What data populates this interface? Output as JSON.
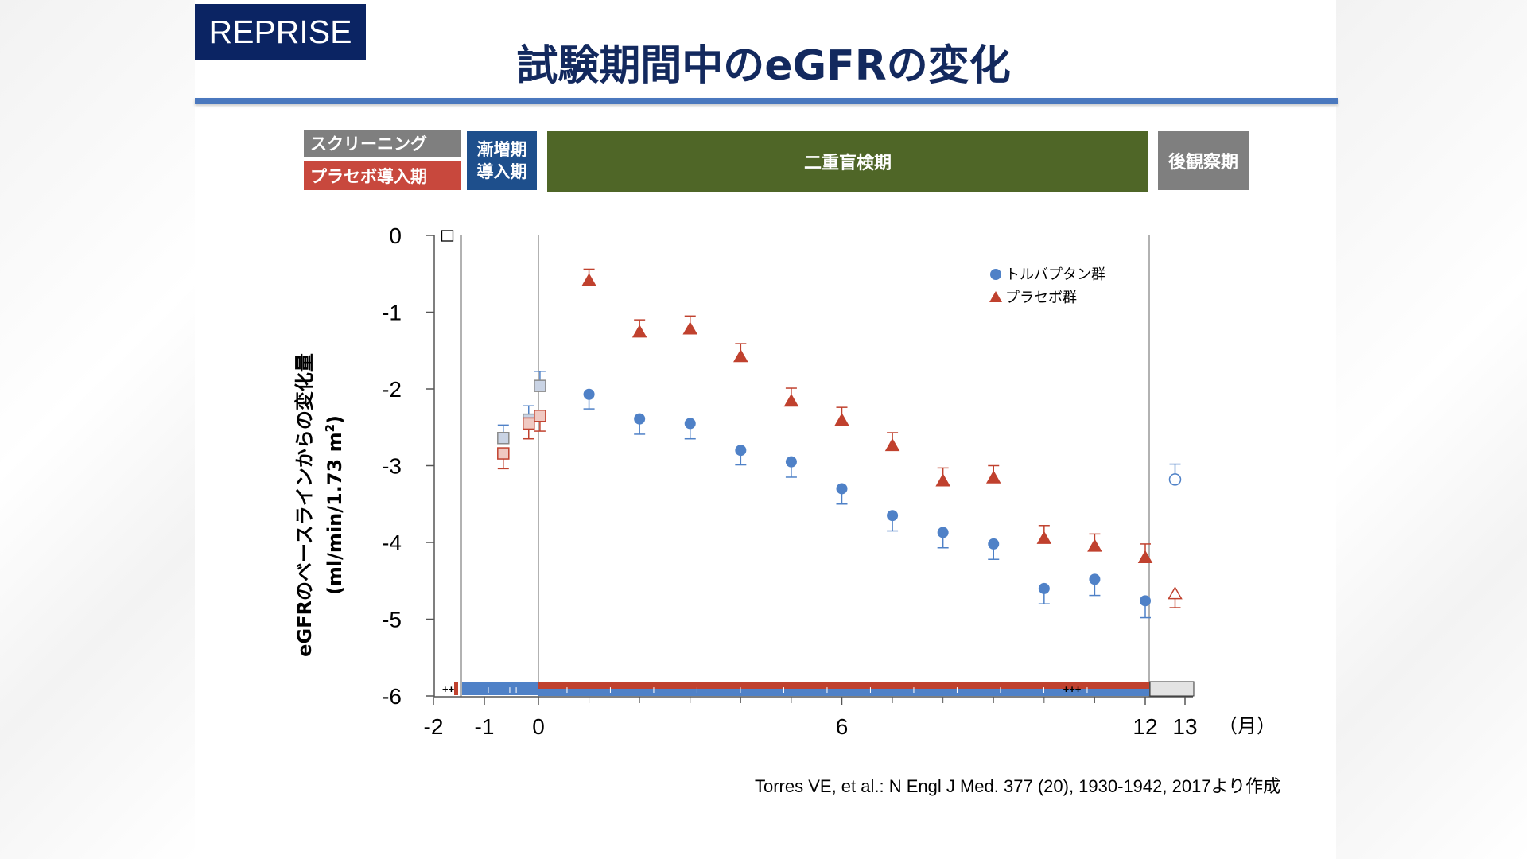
{
  "badge": "REPRISE",
  "title": "試験期間中のeGFRの変化",
  "phases": {
    "screening": "スクリーニング",
    "placebo_runin": "プラセボ導入期",
    "titration_line1": "漸増期",
    "titration_line2": "導入期",
    "double_blind": "二重盲検期",
    "followup": "後観察期"
  },
  "citation": "Torres VE, et al.: N Engl J Med. 377 (20), 1930-1942, 2017より作成",
  "colors": {
    "tolvaptan": "#4f81c7",
    "placebo": "#c0412e",
    "title": "#13295e",
    "accent": "#4a78be"
  },
  "chart_data": {
    "type": "scatter",
    "ylabel_line1": "eGFRのベースラインからの変化量",
    "ylabel_line2_prefix": "(ml/min/1.73 m",
    "ylabel_line2_sup": "2",
    "ylabel_line2_suffix": ")",
    "x_unit": "（月）",
    "ylim": [
      -6,
      0
    ],
    "xlim": [
      -2,
      13
    ],
    "x_ticks": [
      "-2",
      "-1",
      "0",
      "6",
      "12",
      "13"
    ],
    "x_tick_values": [
      -2,
      -1,
      0,
      6,
      12,
      13
    ],
    "y_ticks": [
      "0",
      "-1",
      "-2",
      "-3",
      "-4",
      "-5",
      "-6"
    ],
    "y_tick_values": [
      0,
      -1,
      -2,
      -3,
      -4,
      -5,
      -6
    ],
    "legend": {
      "position": "top-right",
      "tolvaptan": "トルバプタン群",
      "placebo": "プラセボ群"
    },
    "series": [
      {
        "name": "トルバプタン群",
        "marker": "circle",
        "color": "#4f81c7",
        "x": [
          1,
          2,
          3,
          4,
          5,
          6,
          7,
          8,
          9,
          10,
          11,
          12
        ],
        "y": [
          -2.07,
          -2.39,
          -2.45,
          -2.8,
          -2.95,
          -3.3,
          -3.65,
          -3.87,
          -4.02,
          -4.6,
          -4.48,
          -4.76
        ],
        "err": [
          0.19,
          0.2,
          0.2,
          0.19,
          0.2,
          0.2,
          0.2,
          0.2,
          0.2,
          0.2,
          0.21,
          0.22
        ]
      },
      {
        "name": "プラセボ群",
        "marker": "triangle",
        "color": "#c0412e",
        "x": [
          1,
          2,
          3,
          4,
          5,
          6,
          7,
          8,
          9,
          10,
          11,
          12
        ],
        "y": [
          -0.59,
          -1.26,
          -1.22,
          -1.58,
          -2.16,
          -2.41,
          -2.74,
          -3.2,
          -3.16,
          -3.95,
          -4.05,
          -4.2
        ],
        "err": [
          0.15,
          0.16,
          0.17,
          0.17,
          0.17,
          0.17,
          0.17,
          0.17,
          0.16,
          0.17,
          0.16,
          0.18
        ]
      }
    ],
    "pre_randomization": [
      {
        "group": "tolvaptan",
        "marker": "square",
        "x": -0.65,
        "y": -2.64,
        "err": 0.17
      },
      {
        "group": "tolvaptan",
        "marker": "square",
        "x": -0.18,
        "y": -2.4,
        "err": 0.18
      },
      {
        "group": "tolvaptan",
        "marker": "square",
        "x": 0.03,
        "y": -1.96,
        "err": 0.19
      },
      {
        "group": "placebo",
        "marker": "square",
        "x": -0.65,
        "y": -2.84,
        "err": 0.2
      },
      {
        "group": "placebo",
        "marker": "square",
        "x": -0.18,
        "y": -2.45,
        "err": 0.2
      },
      {
        "group": "placebo",
        "marker": "square",
        "x": 0.03,
        "y": -2.35,
        "err": 0.2
      }
    ],
    "followup_points": [
      {
        "group": "tolvaptan",
        "marker": "open-circle",
        "x": 12.75,
        "y": -3.18,
        "err": 0.2
      },
      {
        "group": "placebo",
        "marker": "open-triangle",
        "x": 12.75,
        "y": -4.67,
        "err": 0.18
      }
    ],
    "screening_marker": {
      "marker": "open-square",
      "x": -1.75,
      "y": 0
    },
    "dosing_markers": {
      "screening": "++",
      "runin": [
        "+",
        "++"
      ],
      "treatment": [
        "+",
        "+",
        "+",
        "+",
        "+",
        "+",
        "+",
        "+",
        "+",
        "+",
        "+",
        "+",
        "+"
      ],
      "end": "+++"
    }
  }
}
